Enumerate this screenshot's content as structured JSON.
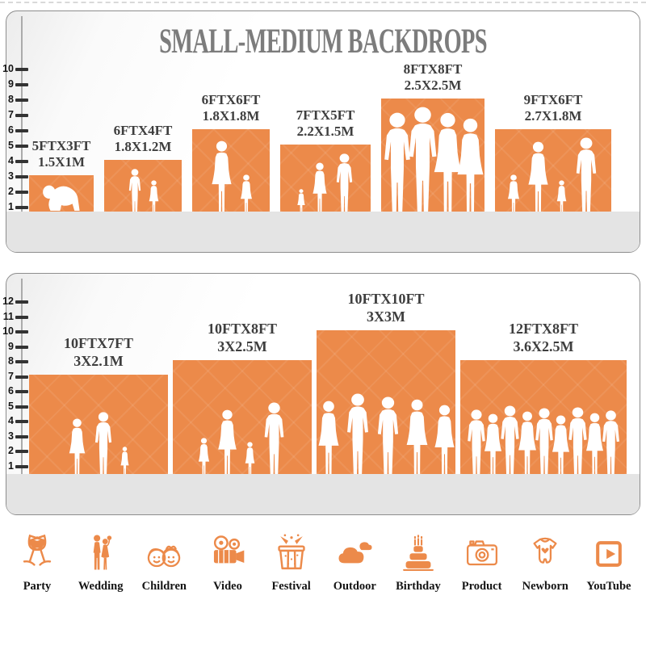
{
  "title": "SMALL-MEDIUM BACKDROPS",
  "colors": {
    "orange": "#EC8A4A",
    "floor_gray": "#E4E4E4",
    "panel_border": "#8D8D8D",
    "title_gray": "#7C7C7C",
    "label_dark": "#3E3E3E",
    "tick_black": "#333333",
    "silhouette_white": "#FFFFFF"
  },
  "panels": [
    {
      "id": "small",
      "scale_numbers_max": 10,
      "bars": [
        {
          "size_ft": "5FTX3FT",
          "size_m": "1.5X1M",
          "width_ft": 5,
          "height_ft": 3,
          "figures": [
            {
              "kind": "baby",
              "h": 0.88
            }
          ]
        },
        {
          "size_ft": "6FTX4FT",
          "size_m": "1.8X1.2M",
          "width_ft": 6,
          "height_ft": 4,
          "figures": [
            {
              "kind": "boy",
              "h": 0.93
            },
            {
              "kind": "girl",
              "h": 0.72
            }
          ]
        },
        {
          "size_ft": "6FTX6FT",
          "size_m": "1.8X1.8M",
          "width_ft": 6,
          "height_ft": 6,
          "figures": [
            {
              "kind": "woman",
              "h": 0.93
            },
            {
              "kind": "girl",
              "h": 0.52
            }
          ]
        },
        {
          "size_ft": "7FTX5FT",
          "size_m": "2.2X1.5M",
          "width_ft": 7,
          "height_ft": 5,
          "figures": [
            {
              "kind": "girl",
              "h": 0.42
            },
            {
              "kind": "woman",
              "h": 0.82
            },
            {
              "kind": "man",
              "h": 0.95
            }
          ]
        },
        {
          "size_ft": "8FTX8FT",
          "size_m": "2.5X2.5M",
          "width_ft": 8,
          "height_ft": 8,
          "figures": [
            {
              "kind": "man",
              "h": 0.93
            },
            {
              "kind": "man",
              "h": 0.98
            },
            {
              "kind": "woman",
              "h": 0.93
            },
            {
              "kind": "woman",
              "h": 0.88
            }
          ]
        },
        {
          "size_ft": "9FTX6FT",
          "size_m": "2.7X1.8M",
          "width_ft": 9,
          "height_ft": 6,
          "figures": [
            {
              "kind": "girl",
              "h": 0.52
            },
            {
              "kind": "woman",
              "h": 0.92
            },
            {
              "kind": "girl",
              "h": 0.45
            },
            {
              "kind": "man",
              "h": 0.97
            }
          ]
        }
      ]
    },
    {
      "id": "medium",
      "scale_numbers_max": 12,
      "bars": [
        {
          "size_ft": "10FTX7FT",
          "size_m": "3X2.1M",
          "width_ft": 10,
          "height_ft": 7,
          "figures": [
            {
              "kind": "woman",
              "h": 0.62
            },
            {
              "kind": "man",
              "h": 0.68
            },
            {
              "kind": "girl",
              "h": 0.33
            }
          ]
        },
        {
          "size_ft": "10FTX8FT",
          "size_m": "3X2.5M",
          "width_ft": 10,
          "height_ft": 8,
          "figures": [
            {
              "kind": "girl",
              "h": 0.37
            },
            {
              "kind": "woman",
              "h": 0.62
            },
            {
              "kind": "girl",
              "h": 0.33
            },
            {
              "kind": "man",
              "h": 0.68
            }
          ]
        },
        {
          "size_ft": "10FTX10FT",
          "size_m": "3X3M",
          "width_ft": 10,
          "height_ft": 10,
          "figures": [
            {
              "kind": "woman",
              "h": 0.55
            },
            {
              "kind": "man",
              "h": 0.6
            },
            {
              "kind": "man",
              "h": 0.58
            },
            {
              "kind": "woman",
              "h": 0.56
            },
            {
              "kind": "woman",
              "h": 0.52
            }
          ]
        },
        {
          "size_ft": "12FTX8FT",
          "size_m": "3.6X2.5M",
          "width_ft": 12,
          "height_ft": 8,
          "figures": [
            {
              "kind": "man",
              "h": 0.62
            },
            {
              "kind": "woman",
              "h": 0.58
            },
            {
              "kind": "man",
              "h": 0.65
            },
            {
              "kind": "woman",
              "h": 0.6
            },
            {
              "kind": "man",
              "h": 0.63
            },
            {
              "kind": "woman",
              "h": 0.57
            },
            {
              "kind": "man",
              "h": 0.64
            },
            {
              "kind": "woman",
              "h": 0.59
            },
            {
              "kind": "man",
              "h": 0.61
            }
          ]
        }
      ]
    }
  ],
  "footer": {
    "items": [
      {
        "icon": "party",
        "label": "Party"
      },
      {
        "icon": "wedding",
        "label": "Wedding"
      },
      {
        "icon": "children",
        "label": "Children"
      },
      {
        "icon": "video",
        "label": "Video"
      },
      {
        "icon": "festival",
        "label": "Festival"
      },
      {
        "icon": "outdoor",
        "label": "Outdoor"
      },
      {
        "icon": "birthday",
        "label": "Birthday"
      },
      {
        "icon": "product",
        "label": "Product"
      },
      {
        "icon": "newborn",
        "label": "Newborn"
      },
      {
        "icon": "youtube",
        "label": "YouTube"
      }
    ]
  }
}
